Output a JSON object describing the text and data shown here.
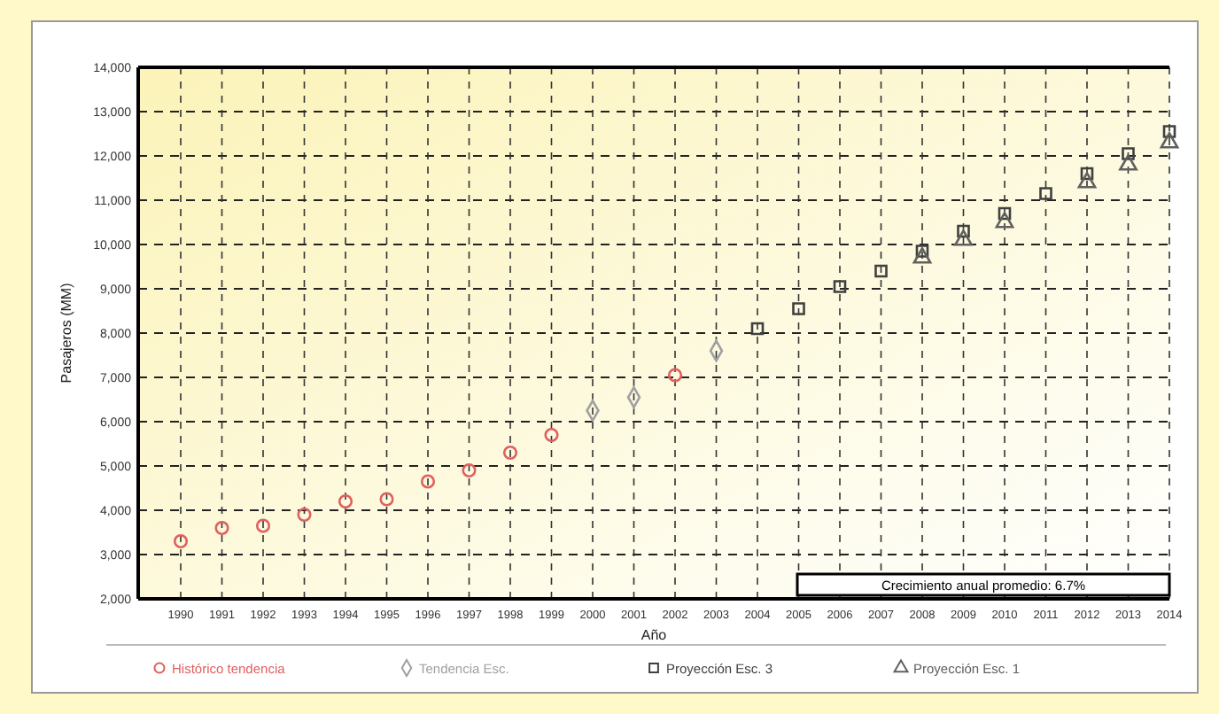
{
  "chart_data": {
    "type": "scatter",
    "xlabel": "Año",
    "ylabel": "Pasajeros (MM)",
    "categories": [
      "1990",
      "1991",
      "1992",
      "1993",
      "1994",
      "1995",
      "1996",
      "1997",
      "1998",
      "1999",
      "2000",
      "2001",
      "2002",
      "2003",
      "2004",
      "2005",
      "2006",
      "2007",
      "2008",
      "2009",
      "2010",
      "2011",
      "2012",
      "2013",
      "2014"
    ],
    "series": [
      {
        "name": "Histórico tendencia",
        "color": "#e06060",
        "marker": "circle",
        "values": [
          3300,
          3600,
          3650,
          3900,
          4200,
          4250,
          4650,
          4900,
          5300,
          5700,
          null,
          null,
          7050,
          null,
          null,
          null,
          null,
          null,
          null,
          null,
          null,
          null,
          null,
          null,
          null
        ]
      },
      {
        "name": "Tendencia Esc.",
        "color": "#a0a0a0",
        "marker": "diamond",
        "values": [
          null,
          null,
          null,
          null,
          null,
          null,
          null,
          null,
          null,
          null,
          6250,
          6550,
          null,
          7600,
          null,
          null,
          null,
          null,
          null,
          null,
          null,
          null,
          null,
          null,
          null
        ]
      },
      {
        "name": "Proyección Esc. 3",
        "color": "#404040",
        "marker": "square",
        "values": [
          null,
          null,
          null,
          null,
          null,
          null,
          null,
          null,
          null,
          null,
          null,
          null,
          null,
          null,
          8100,
          8550,
          9050,
          9400,
          9850,
          10300,
          10700,
          11150,
          11600,
          12050,
          12550
        ]
      },
      {
        "name": "Proyección Esc. 1",
        "color": "#606060",
        "marker": "triangle",
        "values": [
          null,
          null,
          null,
          null,
          null,
          null,
          null,
          null,
          null,
          null,
          null,
          null,
          null,
          null,
          null,
          null,
          null,
          null,
          9700,
          10100,
          10500,
          null,
          11400,
          11800,
          12300
        ]
      }
    ],
    "ylim": [
      2000,
      14000
    ],
    "yticks": [
      {
        "value": 2000,
        "label": "2,000"
      },
      {
        "value": 3000,
        "label": "3,000"
      },
      {
        "value": 4000,
        "label": "4,000"
      },
      {
        "value": 5000,
        "label": "5,000"
      },
      {
        "value": 6000,
        "label": "6,000"
      },
      {
        "value": 7000,
        "label": "7,000"
      },
      {
        "value": 8000,
        "label": "8,000"
      },
      {
        "value": 9000,
        "label": "9,000"
      },
      {
        "value": 10000,
        "label": "10,000"
      },
      {
        "value": 11000,
        "label": "11,000"
      },
      {
        "value": 12000,
        "label": "12,000"
      },
      {
        "value": 13000,
        "label": "13,000"
      },
      {
        "value": 14000,
        "label": "14,000"
      }
    ],
    "grid": true,
    "legend": "bottom",
    "annotations": [
      "Crecimiento anual promedio: 6.7%"
    ]
  }
}
